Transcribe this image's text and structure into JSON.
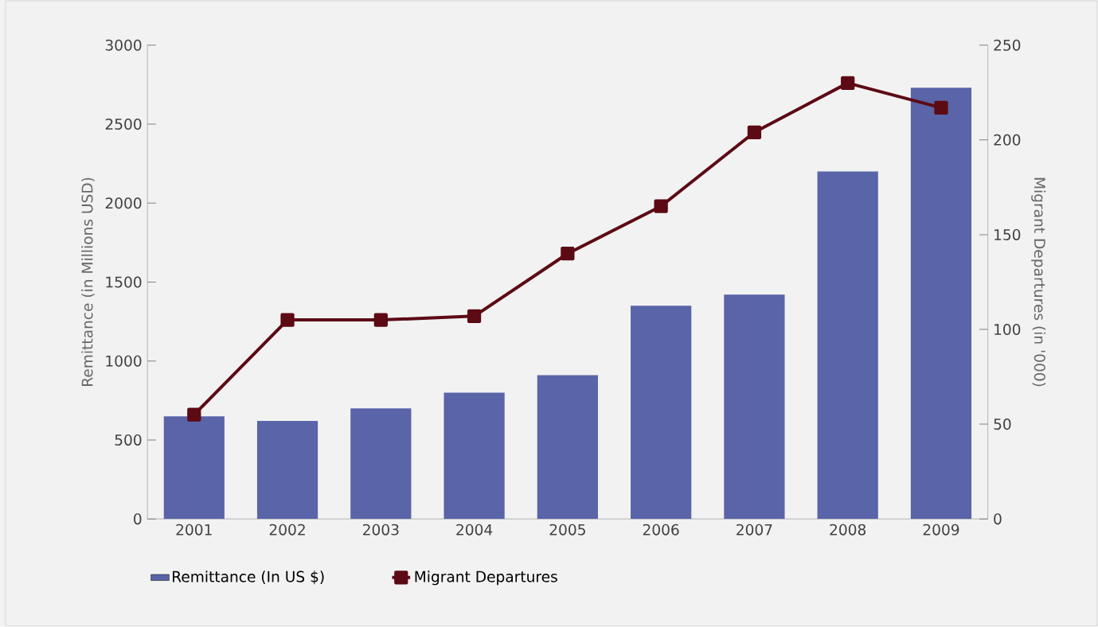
{
  "chart_data": {
    "type": "bar",
    "categories": [
      "2001",
      "2002",
      "2003",
      "2004",
      "2005",
      "2006",
      "2007",
      "2008",
      "2009"
    ],
    "ylabel": "Remittance (in Millions USD)",
    "y2label": "Migrant Departures (in '000)",
    "ylim": [
      0,
      3000
    ],
    "yticks": [
      0,
      500,
      1000,
      1500,
      2000,
      2500,
      3000
    ],
    "y2lim": [
      0,
      250
    ],
    "y2ticks": [
      0,
      50,
      100,
      150,
      200,
      250
    ],
    "legend": "bottom left",
    "grid": false,
    "series": [
      {
        "name": "Remittance (In US $)",
        "color": "#5a64a8",
        "values": [
          650,
          620,
          700,
          800,
          910,
          1350,
          1420,
          2200,
          2730
        ]
      },
      {
        "name": "Migrant Departures",
        "type": "line",
        "axis": "y2",
        "color": "#5c0a14",
        "marker": "square",
        "line_style": "solid",
        "values": [
          55,
          105,
          105,
          107,
          140,
          165,
          204,
          230,
          217
        ]
      }
    ]
  }
}
